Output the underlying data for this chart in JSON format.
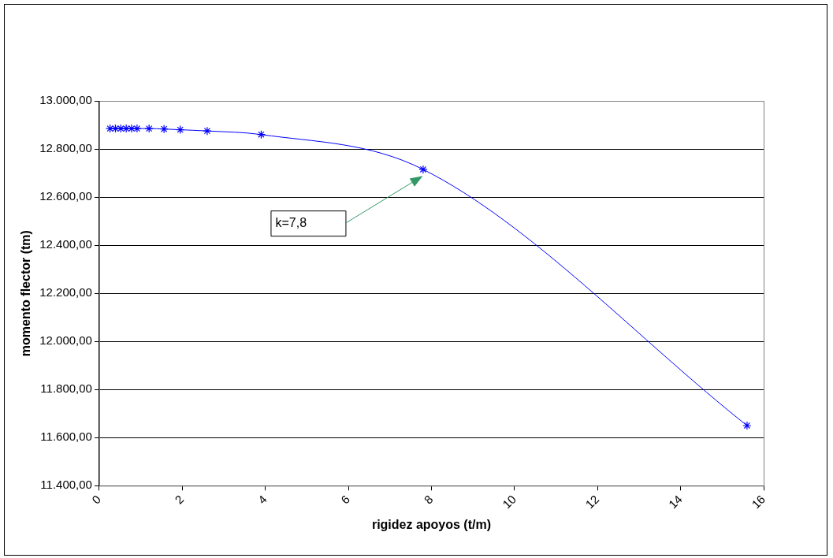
{
  "chart_data": {
    "type": "line",
    "xlabel": "rigidez apoyos (t/m)",
    "ylabel": "momento flector (tm)",
    "x": [
      0.26,
      0.39,
      0.52,
      0.65,
      0.78,
      0.91,
      1.2,
      1.56,
      1.95,
      2.6,
      3.9,
      7.8,
      15.6
    ],
    "series": [
      {
        "color": "#0000ff",
        "values": [
          12885,
          12885,
          12885,
          12885,
          12885,
          12885,
          12885,
          12883,
          12880,
          12875,
          12860,
          12715,
          11650
        ]
      }
    ],
    "xlim": [
      0,
      16
    ],
    "xticks": [
      0,
      2,
      4,
      6,
      8,
      10,
      12,
      14,
      16
    ],
    "ylim": [
      11400,
      13000
    ],
    "yticks": [
      {
        "value": 11400,
        "label": "11.400,00"
      },
      {
        "value": 11600,
        "label": "11.600,00"
      },
      {
        "value": 11800,
        "label": "11.800,00"
      },
      {
        "value": 12000,
        "label": "12.000,00"
      },
      {
        "value": 12200,
        "label": "12.200,00"
      },
      {
        "value": 12400,
        "label": "12.400,00"
      },
      {
        "value": 12600,
        "label": "12.600,00"
      },
      {
        "value": 12800,
        "label": "12.800,00"
      },
      {
        "value": 13000,
        "label": "13.000,00"
      }
    ],
    "annotations": [
      "k=7,8"
    ],
    "grid": "y",
    "marker": "cross",
    "line_style": "solid"
  }
}
